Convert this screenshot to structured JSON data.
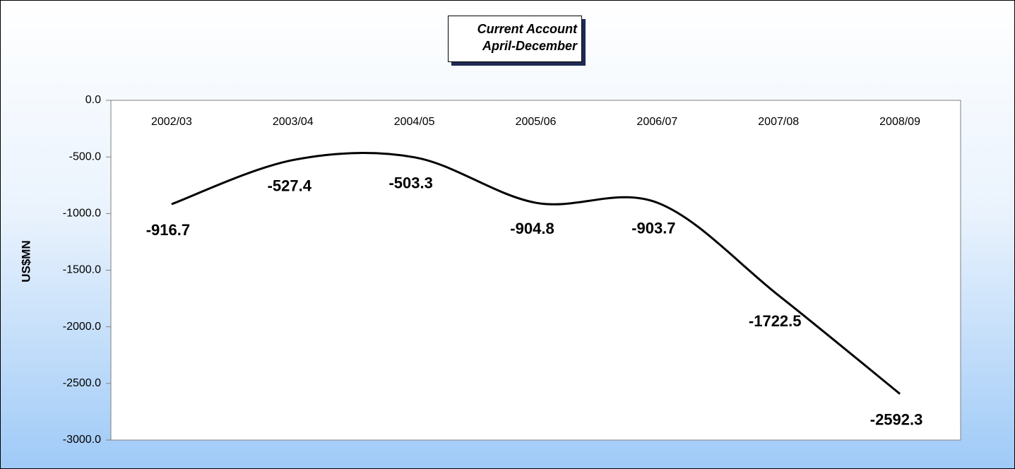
{
  "chart_data": {
    "type": "line",
    "title": "Current Account\nApril-December",
    "y_label": "US$MN",
    "categories": [
      "2002/03",
      "2003/04",
      "2004/05",
      "2005/06",
      "2006/07",
      "2007/08",
      "2008/09"
    ],
    "series": [
      {
        "name": "Current Account",
        "color": "#000000",
        "values": [
          -916.7,
          -527.4,
          -503.3,
          -904.8,
          -903.7,
          -1722.5,
          -2592.3
        ]
      }
    ],
    "smooth": true,
    "ylim": [
      -3000,
      0
    ],
    "yticks": [
      {
        "value": 0,
        "label": "0.0"
      },
      {
        "value": -500,
        "label": "-500.0"
      },
      {
        "value": -1000,
        "label": "-1000.0"
      },
      {
        "value": -1500,
        "label": "-1500.0"
      },
      {
        "value": -2000,
        "label": "-2000.0"
      },
      {
        "value": -2500,
        "label": "-2500.0"
      },
      {
        "value": -3000,
        "label": "-3000.0"
      }
    ],
    "grid": false
  }
}
